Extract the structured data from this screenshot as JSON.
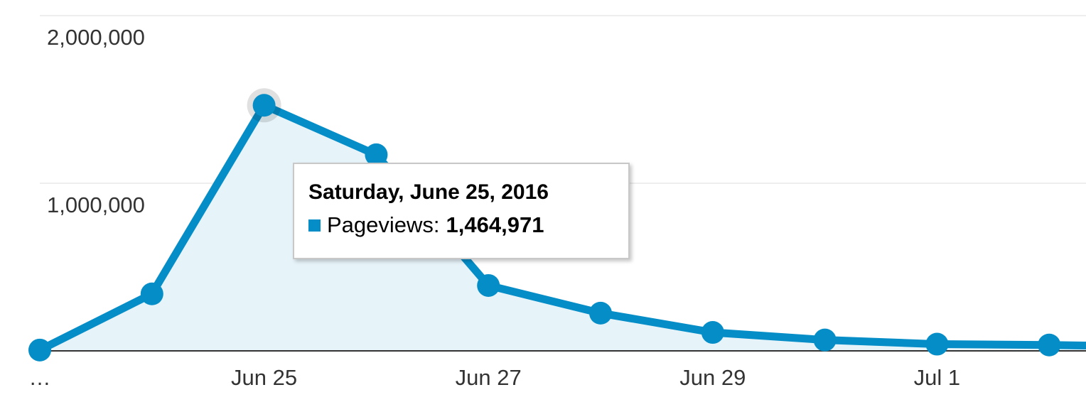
{
  "chart_data": {
    "type": "area",
    "x_tick_labels": [
      "…",
      "Jun 25",
      "Jun 27",
      "Jun 29",
      "Jul 1"
    ],
    "y_tick_labels": [
      "2,000,000",
      "1,000,000"
    ],
    "y_ticks": [
      2000000,
      1000000
    ],
    "ylim": [
      0,
      2000000
    ],
    "grid": true,
    "series": [
      {
        "name": "Pageviews",
        "color": "#058dc7",
        "x": [
          "2016-06-23",
          "2016-06-24",
          "2016-06-25",
          "2016-06-26",
          "2016-06-27",
          "2016-06-28",
          "2016-06-29",
          "2016-06-30",
          "2016-07-01",
          "2016-07-02",
          "2016-07-03"
        ],
        "values": [
          5000,
          340000,
          1464971,
          1170000,
          390000,
          225000,
          110000,
          65000,
          40000,
          35000,
          25000
        ]
      }
    ],
    "highlight_index": 2
  },
  "tooltip": {
    "title": "Saturday, June 25, 2016",
    "label": "Pageviews:",
    "value": "1,464,971"
  },
  "colors": {
    "line": "#058dc7",
    "fill": "#e6f3f9",
    "grid": "#eeeeee",
    "baseline": "#333333"
  }
}
